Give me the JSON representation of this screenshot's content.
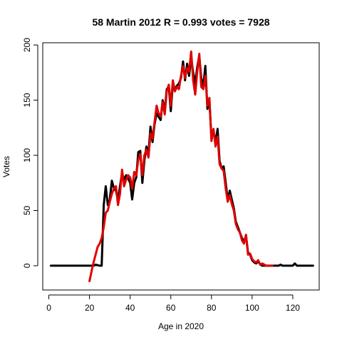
{
  "chart_data": {
    "type": "line",
    "title": "58 Martin 2012 R = 0.993 votes = 7928",
    "xlabel": "Age in 2020",
    "ylabel": "Votes",
    "xlim": [
      -3,
      133
    ],
    "ylim": [
      -22,
      202
    ],
    "xticks": [
      0,
      20,
      40,
      60,
      80,
      100,
      120
    ],
    "yticks": [
      0,
      50,
      100,
      150,
      200
    ],
    "grid": false,
    "legend": "none",
    "series": [
      {
        "color": "#000000",
        "points": [
          [
            1,
            0
          ],
          [
            5,
            0
          ],
          [
            10,
            0
          ],
          [
            15,
            0
          ],
          [
            20,
            0
          ],
          [
            22,
            0
          ],
          [
            23,
            1
          ],
          [
            25,
            0
          ],
          [
            26,
            0
          ],
          [
            27,
            55
          ],
          [
            28,
            72
          ],
          [
            29,
            55
          ],
          [
            30,
            60
          ],
          [
            31,
            77
          ],
          [
            32,
            70
          ],
          [
            33,
            68
          ],
          [
            34,
            60
          ],
          [
            35,
            72
          ],
          [
            36,
            84
          ],
          [
            37,
            78
          ],
          [
            38,
            82
          ],
          [
            39,
            79
          ],
          [
            40,
            75
          ],
          [
            41,
            60
          ],
          [
            42,
            75
          ],
          [
            43,
            80
          ],
          [
            44,
            103
          ],
          [
            45,
            104
          ],
          [
            46,
            75
          ],
          [
            47,
            95
          ],
          [
            48,
            108
          ],
          [
            49,
            102
          ],
          [
            50,
            126
          ],
          [
            51,
            112
          ],
          [
            52,
            128
          ],
          [
            53,
            138
          ],
          [
            54,
            135
          ],
          [
            55,
            132
          ],
          [
            56,
            150
          ],
          [
            57,
            140
          ],
          [
            58,
            160
          ],
          [
            59,
            162
          ],
          [
            60,
            140
          ],
          [
            61,
            165
          ],
          [
            62,
            160
          ],
          [
            63,
            163
          ],
          [
            64,
            165
          ],
          [
            65,
            170
          ],
          [
            66,
            185
          ],
          [
            67,
            168
          ],
          [
            68,
            183
          ],
          [
            69,
            172
          ],
          [
            70,
            188
          ],
          [
            71,
            175
          ],
          [
            72,
            165
          ],
          [
            73,
            180
          ],
          [
            74,
            190
          ],
          [
            75,
            170
          ],
          [
            76,
            163
          ],
          [
            77,
            181
          ],
          [
            78,
            142
          ],
          [
            79,
            150
          ],
          [
            80,
            115
          ],
          [
            81,
            122
          ],
          [
            82,
            112
          ],
          [
            83,
            124
          ],
          [
            84,
            95
          ],
          [
            85,
            88
          ],
          [
            86,
            90
          ],
          [
            87,
            75
          ],
          [
            88,
            60
          ],
          [
            89,
            68
          ],
          [
            90,
            60
          ],
          [
            91,
            52
          ],
          [
            92,
            40
          ],
          [
            93,
            35
          ],
          [
            94,
            30
          ],
          [
            95,
            25
          ],
          [
            96,
            22
          ],
          [
            97,
            27
          ],
          [
            98,
            12
          ],
          [
            99,
            10
          ],
          [
            100,
            5
          ],
          [
            101,
            3
          ],
          [
            102,
            2
          ],
          [
            103,
            4
          ],
          [
            104,
            1
          ],
          [
            105,
            0
          ],
          [
            110,
            0
          ],
          [
            113,
            0
          ],
          [
            114,
            1
          ],
          [
            115,
            0
          ],
          [
            120,
            0
          ],
          [
            121,
            2
          ],
          [
            122,
            0
          ],
          [
            125,
            0
          ],
          [
            130,
            0
          ]
        ]
      },
      {
        "color": "#e00000",
        "points": [
          [
            20,
            -14
          ],
          [
            21,
            -5
          ],
          [
            22,
            3
          ],
          [
            23,
            10
          ],
          [
            24,
            17
          ],
          [
            25,
            20
          ],
          [
            26,
            25
          ],
          [
            27,
            35
          ],
          [
            28,
            48
          ],
          [
            29,
            50
          ],
          [
            30,
            58
          ],
          [
            31,
            65
          ],
          [
            32,
            70
          ],
          [
            33,
            72
          ],
          [
            34,
            55
          ],
          [
            35,
            65
          ],
          [
            36,
            87
          ],
          [
            37,
            72
          ],
          [
            38,
            78
          ],
          [
            39,
            82
          ],
          [
            40,
            80
          ],
          [
            41,
            70
          ],
          [
            42,
            85
          ],
          [
            43,
            82
          ],
          [
            44,
            96
          ],
          [
            45,
            101
          ],
          [
            46,
            82
          ],
          [
            47,
            100
          ],
          [
            48,
            105
          ],
          [
            49,
            98
          ],
          [
            50,
            120
          ],
          [
            51,
            115
          ],
          [
            52,
            130
          ],
          [
            53,
            145
          ],
          [
            54,
            138
          ],
          [
            55,
            135
          ],
          [
            56,
            148
          ],
          [
            57,
            137
          ],
          [
            58,
            158
          ],
          [
            59,
            164
          ],
          [
            60,
            145
          ],
          [
            61,
            168
          ],
          [
            62,
            158
          ],
          [
            63,
            162
          ],
          [
            64,
            160
          ],
          [
            65,
            172
          ],
          [
            66,
            181
          ],
          [
            67,
            170
          ],
          [
            68,
            179
          ],
          [
            69,
            176
          ],
          [
            70,
            194
          ],
          [
            71,
            168
          ],
          [
            72,
            155
          ],
          [
            73,
            176
          ],
          [
            74,
            192
          ],
          [
            75,
            162
          ],
          [
            76,
            160
          ],
          [
            77,
            172
          ],
          [
            78,
            145
          ],
          [
            79,
            152
          ],
          [
            80,
            113
          ],
          [
            81,
            124
          ],
          [
            82,
            108
          ],
          [
            83,
            117
          ],
          [
            84,
            92
          ],
          [
            85,
            88
          ],
          [
            86,
            86
          ],
          [
            87,
            70
          ],
          [
            88,
            58
          ],
          [
            89,
            64
          ],
          [
            90,
            56
          ],
          [
            91,
            50
          ],
          [
            92,
            38
          ],
          [
            93,
            33
          ],
          [
            94,
            30
          ],
          [
            95,
            23
          ],
          [
            96,
            20
          ],
          [
            97,
            28
          ],
          [
            98,
            10
          ],
          [
            99,
            11
          ],
          [
            100,
            6
          ],
          [
            101,
            4
          ],
          [
            102,
            3
          ],
          [
            103,
            5
          ],
          [
            104,
            1
          ],
          [
            105,
            2
          ],
          [
            106,
            1
          ],
          [
            107,
            0
          ],
          [
            110,
            0
          ]
        ]
      }
    ]
  }
}
